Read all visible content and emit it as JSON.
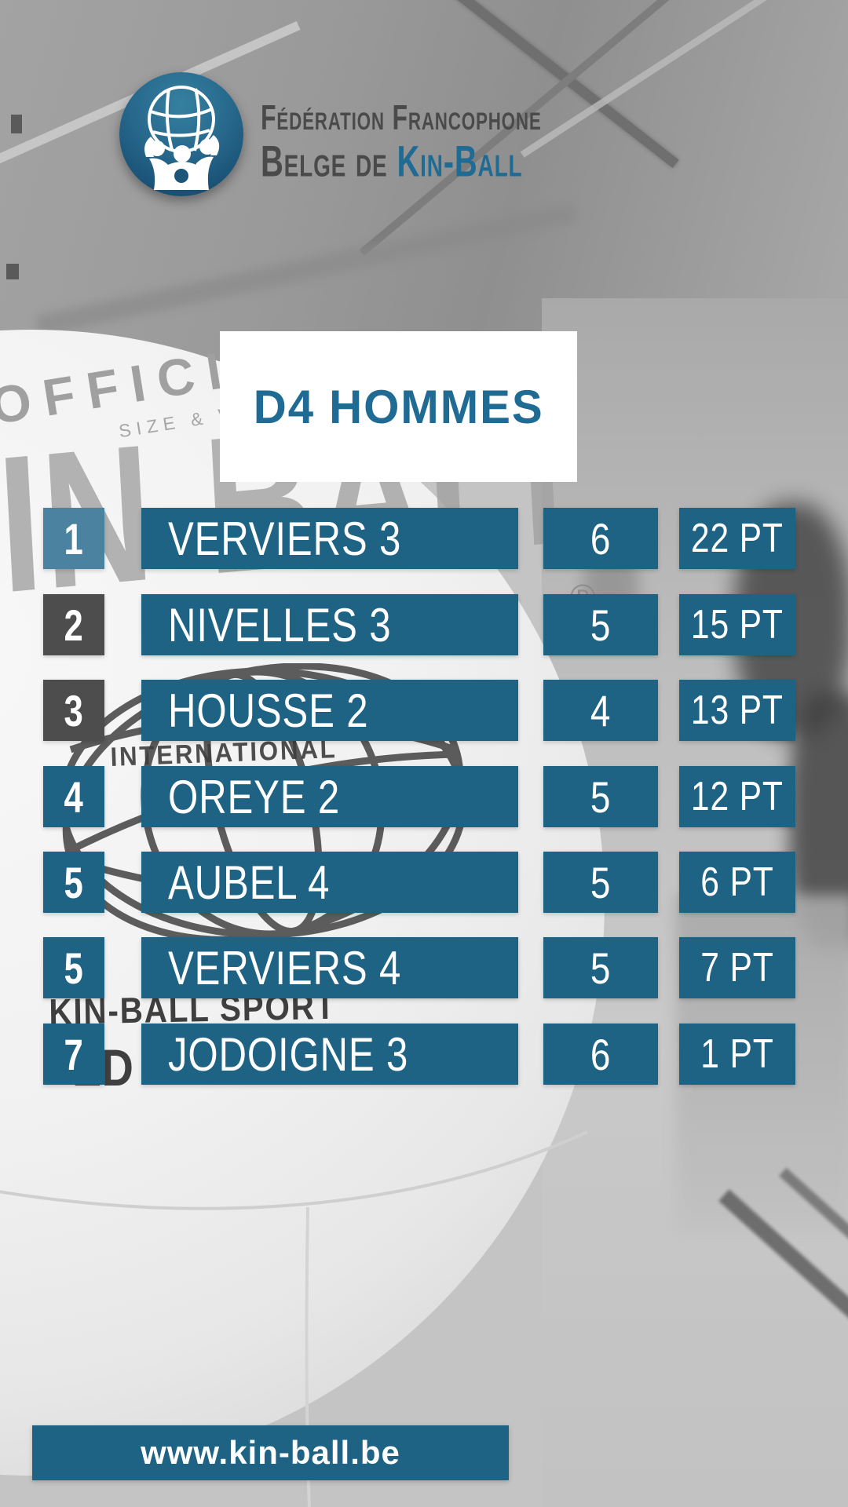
{
  "logo": {
    "line1": "Fédération Francophone",
    "line2_prefix": "Belge de ",
    "line2_brand": "Kin-Ball"
  },
  "title": {
    "text": "D4 HOMMES"
  },
  "standings": {
    "rows": [
      {
        "rank": "1",
        "team": "VERVIERS 3",
        "games": "6",
        "points": "22 PT",
        "rank_variant": "first"
      },
      {
        "rank": "2",
        "team": "NIVELLES 3",
        "games": "5",
        "points": "15 PT",
        "rank_variant": "gray"
      },
      {
        "rank": "3",
        "team": "HOUSSE 2",
        "games": "4",
        "points": "13 PT",
        "rank_variant": "gray"
      },
      {
        "rank": "4",
        "team": "OREYE 2",
        "games": "5",
        "points": "12 PT",
        "rank_variant": "blue"
      },
      {
        "rank": "5",
        "team": "AUBEL 4",
        "games": "5",
        "points": "6 PT",
        "rank_variant": "blue"
      },
      {
        "rank": "5",
        "team": "VERVIERS 4",
        "games": "5",
        "points": "7 PT",
        "rank_variant": "blue"
      },
      {
        "rank": "7",
        "team": "JODOIGNE 3",
        "games": "6",
        "points": "1 PT",
        "rank_variant": "blue"
      }
    ]
  },
  "footer": {
    "website": "www.kin-ball.be"
  },
  "background_photo_text": {
    "official": "OFFICIAL",
    "size_weight": "SIZE & WEIGHT",
    "brand": "KIN-BALL",
    "registered": "®",
    "international": "INTERNATIONAL",
    "sport": "KIN-BALL SPORT",
    "partial_ed": "ED"
  },
  "colors": {
    "bar_blue": "#1E6284",
    "rank_first_blue": "#4A82A0",
    "rank_gray": "#4D4D4D",
    "title_blue": "#1F6B94",
    "logo_text_gray": "#4A4A4A"
  },
  "chart_data": {
    "type": "table",
    "title": "D4 HOMMES",
    "columns": [
      "rank",
      "team",
      "games_played",
      "points"
    ],
    "rows": [
      [
        "1",
        "VERVIERS 3",
        "6",
        "22 PT"
      ],
      [
        "2",
        "NIVELLES 3",
        "5",
        "15 PT"
      ],
      [
        "3",
        "HOUSSE 2",
        "4",
        "13 PT"
      ],
      [
        "4",
        "OREYE 2",
        "5",
        "12 PT"
      ],
      [
        "5",
        "AUBEL 4",
        "5",
        "6 PT"
      ],
      [
        "5",
        "VERVIERS 4",
        "5",
        "7 PT"
      ],
      [
        "7",
        "JODOIGNE 3",
        "6",
        "1 PT"
      ]
    ]
  }
}
